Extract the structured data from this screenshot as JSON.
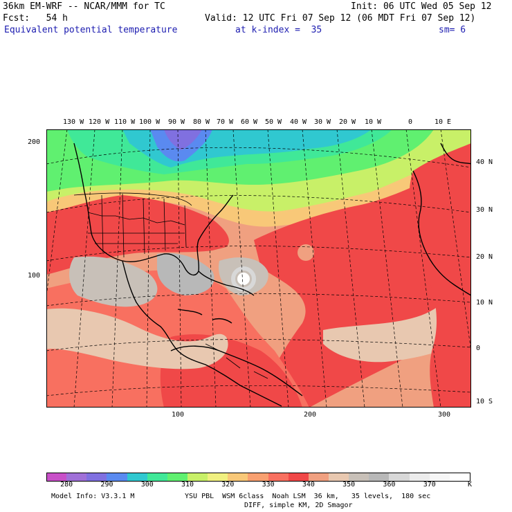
{
  "header": {
    "model": "36km EM-WRF -- NCAR/MMM for TC",
    "init": "Init: 06 UTC Wed 05 Sep 12",
    "fcst": "Fcst:   54 h",
    "valid": "Valid: 12 UTC Fri 07 Sep 12 (06 MDT Fri 07 Sep 12)",
    "field": "Equivalent potential temperature",
    "level": "at k-index =  35",
    "smooth": "sm= 6"
  },
  "map": {
    "lon_labels": [
      "130 W",
      "120 W",
      "110 W",
      "100 W",
      "90 W",
      "80 W",
      "70 W",
      "60 W",
      "50 W",
      "40 W",
      "30 W",
      "20 W",
      "10 W",
      "0",
      "10 E"
    ],
    "lat_labels": [
      "40 N",
      "30 N",
      "20 N",
      "10 N",
      "0",
      "10 S"
    ],
    "grid_y_labels": [
      "200",
      "100"
    ],
    "grid_x_labels": [
      "100",
      "200",
      "300"
    ]
  },
  "colorbar": {
    "ticks": [
      "280",
      "290",
      "300",
      "310",
      "320",
      "330",
      "340",
      "350",
      "360",
      "370"
    ],
    "unit": "K",
    "colors": [
      "#c850c8",
      "#a070d8",
      "#8070e0",
      "#5a8af0",
      "#30c8d0",
      "#40e898",
      "#60f070",
      "#c8f068",
      "#f0f080",
      "#f8c878",
      "#f8a070",
      "#f87060",
      "#f04848",
      "#f0a080",
      "#e8c8b0",
      "#c8c0b8",
      "#b8b8b8",
      "#d8d8d8",
      "#ececec",
      "#f6f6f6",
      "#ffffff"
    ]
  },
  "footer": {
    "line1_left": "Model Info: V3.3.1 M",
    "line1_right": "YSU PBL  WSM 6class  Noah LSM  36 km,   35 levels,  180 sec",
    "line2": "DIFF, simple KM, 2D Smagor"
  }
}
